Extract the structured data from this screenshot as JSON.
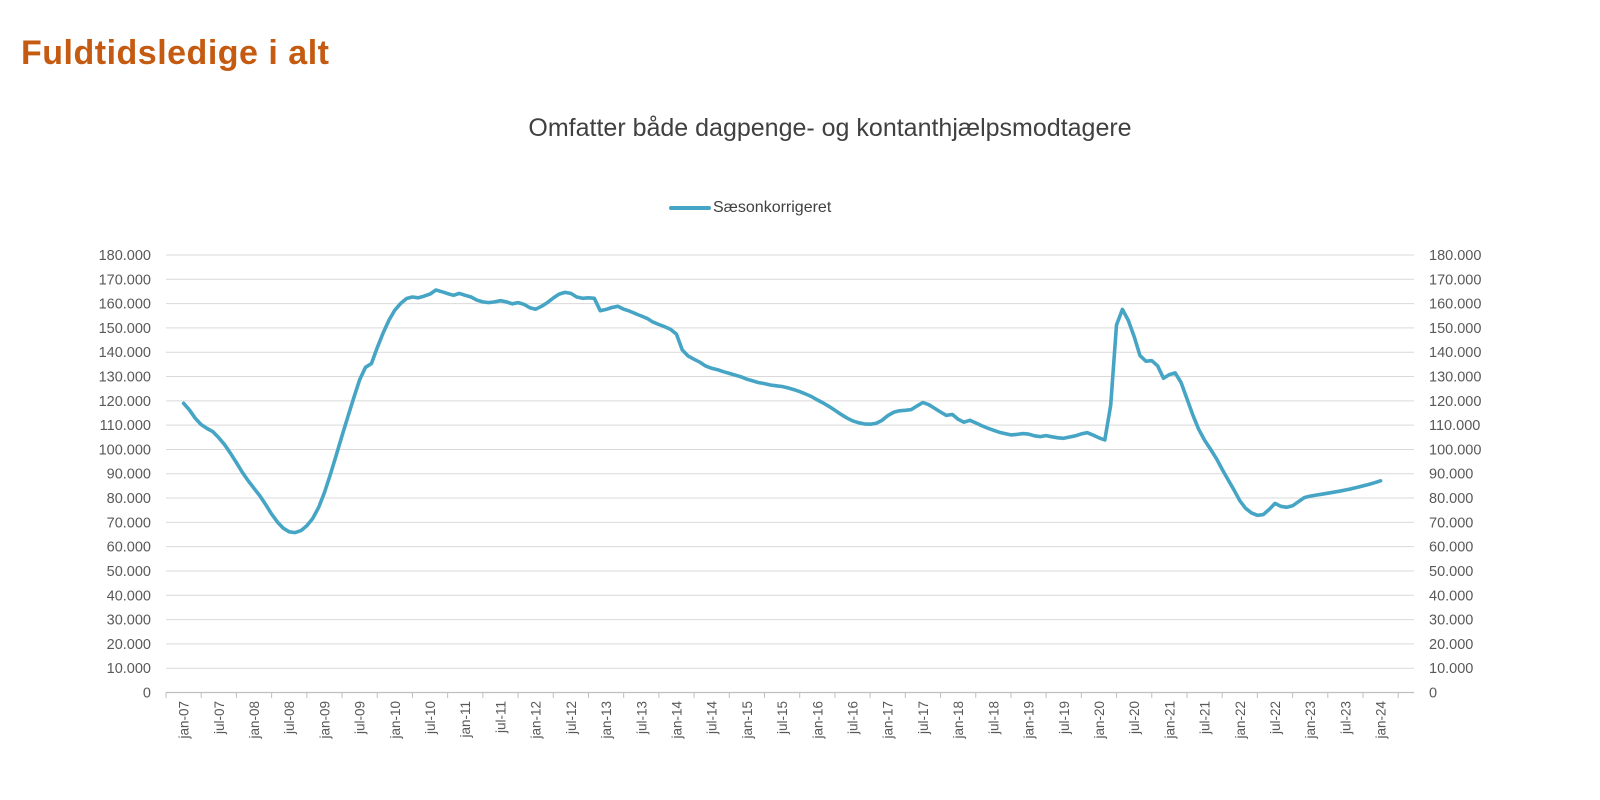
{
  "page_title": "Fuldtidsledige i alt",
  "chart": {
    "title": "Omfatter både dagpenge- og kontanthjælpsmodtagere",
    "legend": {
      "label": "Sæsonkorrigeret"
    }
  },
  "colors": {
    "page_title": "#C55A11",
    "chart_title": "#404040",
    "legend_text": "#404040",
    "series_line": "#46A5C5",
    "gridline": "#D9D9D9",
    "axis_line": "#BFBFBF",
    "tick_label": "#595959",
    "background": "#FFFFFF"
  },
  "chart_data": {
    "type": "line",
    "title": "Omfatter både dagpenge- og kontanthjælpsmodtagere",
    "xlabel": "",
    "ylabel": "",
    "ylim": [
      0,
      180000
    ],
    "y_tick_step": 10000,
    "grid": true,
    "legend_position": "top-center",
    "y_axis_sides": [
      "left",
      "right"
    ],
    "x_start": "jan-2007",
    "x_end": "jan-2024",
    "frequency": "monthly",
    "x_tick_labels": [
      "jan-07",
      "jul-07",
      "jan-08",
      "jul-08",
      "jan-09",
      "jul-09",
      "jan-10",
      "jul-10",
      "jan-11",
      "jul-11",
      "jan-12",
      "jul-12",
      "jan-13",
      "jul-13",
      "jan-14",
      "jul-14",
      "jan-15",
      "jul-15",
      "jan-16",
      "jul-16",
      "jan-17",
      "jul-17",
      "jan-18",
      "jul-18",
      "jan-19",
      "jul-19",
      "jan-20",
      "jul-20",
      "jan-21",
      "jul-21",
      "jan-22",
      "jul-22",
      "jan-23",
      "jul-23",
      "jan-24"
    ],
    "y_tick_labels": [
      "0",
      "10.000",
      "20.000",
      "30.000",
      "40.000",
      "50.000",
      "60.000",
      "70.000",
      "80.000",
      "90.000",
      "100.000",
      "110.000",
      "120.000",
      "130.000",
      "140.000",
      "150.000",
      "160.000",
      "170.000",
      "180.000"
    ],
    "series": [
      {
        "name": "Sæsonkorrigeret",
        "color": "#46A5C5",
        "values": [
          119000,
          116200,
          112800,
          110200,
          108600,
          107300,
          104800,
          101900,
          98400,
          94600,
          90600,
          87200,
          84000,
          80900,
          77300,
          73400,
          70100,
          67600,
          66100,
          65800,
          66600,
          68600,
          71600,
          76100,
          82200,
          89600,
          97600,
          105600,
          113500,
          121300,
          128600,
          133800,
          135300,
          141800,
          147900,
          153200,
          157300,
          160100,
          162100,
          162700,
          162400,
          163100,
          163900,
          165600,
          164900,
          164100,
          163400,
          164200,
          163400,
          162700,
          161400,
          160700,
          160400,
          160700,
          161200,
          160700,
          159900,
          160400,
          159700,
          158300,
          157700,
          158900,
          160400,
          162300,
          163900,
          164600,
          164200,
          162700,
          162200,
          162400,
          162200,
          157100,
          157600,
          158400,
          158900,
          157700,
          156900,
          155900,
          154900,
          153900,
          152400,
          151400,
          150500,
          149400,
          147400,
          140900,
          138400,
          137100,
          135900,
          134300,
          133400,
          132800,
          132000,
          131300,
          130600,
          129900,
          128900,
          128200,
          127500,
          127100,
          126500,
          126200,
          125900,
          125300,
          124600,
          123800,
          122800,
          121800,
          120400,
          119100,
          117700,
          116100,
          114500,
          113000,
          111800,
          111000,
          110500,
          110400,
          110700,
          111900,
          113900,
          115300,
          115900,
          116100,
          116400,
          117900,
          119300,
          118400,
          116900,
          115400,
          114000,
          114400,
          112400,
          111200,
          112000,
          110900,
          109800,
          108800,
          107900,
          107100,
          106500,
          106000,
          106200,
          106500,
          106300,
          105600,
          105300,
          105700,
          105200,
          104800,
          104600,
          105100,
          105600,
          106400,
          106900,
          105900,
          104800,
          103900,
          118200,
          151200,
          157600,
          153100,
          146400,
          138600,
          136300,
          136500,
          134400,
          129300,
          130800,
          131500,
          127500,
          120800,
          114200,
          108300,
          103800,
          100200,
          96300,
          91800,
          87600,
          83400,
          78900,
          75800,
          73900,
          72900,
          73200,
          75300,
          77800,
          76600,
          76200,
          76800,
          78500,
          80200,
          80800,
          81200,
          81600,
          82000,
          82400,
          82800,
          83300,
          83800,
          84400,
          85000,
          85600,
          86300,
          87100
        ]
      }
    ]
  }
}
